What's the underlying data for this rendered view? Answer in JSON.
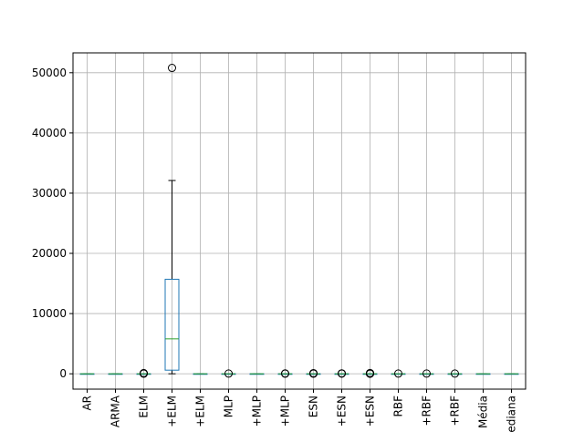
{
  "chart_data": {
    "type": "box",
    "title": "",
    "xlabel": "",
    "ylabel": "",
    "ylim": [
      -2550,
      53300
    ],
    "yticks": [
      0,
      10000,
      20000,
      30000,
      40000,
      50000
    ],
    "ytick_labels": [
      "0",
      "10000",
      "20000",
      "30000",
      "40000",
      "50000"
    ],
    "grid": true,
    "colors": {
      "box": "#1f77b4",
      "median": "#2ca02c",
      "grid": "#b0b0b0",
      "axes": "#000000"
    },
    "categories": [
      "AR",
      "ARMA",
      "ELM",
      "+ELM",
      "+ELM",
      "MLP",
      "+MLP",
      "+MLP",
      "ESN",
      "+ESN",
      "+ESN",
      "RBF",
      "+RBF",
      "+RBF",
      "Média",
      "ediana"
    ],
    "boxes": [
      {
        "label": "AR",
        "whislo": 0,
        "q1": 0,
        "med": 0,
        "q3": 0,
        "whishi": 0,
        "fliers": []
      },
      {
        "label": "ARMA",
        "whislo": 0,
        "q1": 0,
        "med": 0,
        "q3": 0,
        "whishi": 0,
        "fliers": []
      },
      {
        "label": "ELM",
        "whislo": 0,
        "q1": 0,
        "med": 0,
        "q3": 0,
        "whishi": 0,
        "fliers": [
          20,
          60,
          110
        ]
      },
      {
        "label": "+ELM",
        "whislo": 0,
        "q1": 600,
        "med": 5800,
        "q3": 15700,
        "whishi": 32100,
        "fliers": [
          50800
        ]
      },
      {
        "label": "+ELM",
        "whislo": 0,
        "q1": 0,
        "med": 0,
        "q3": 0,
        "whishi": 0,
        "fliers": []
      },
      {
        "label": "MLP",
        "whislo": 0,
        "q1": 0,
        "med": 0,
        "q3": 0,
        "whishi": 0,
        "fliers": [
          40
        ]
      },
      {
        "label": "+MLP",
        "whislo": 0,
        "q1": 0,
        "med": 0,
        "q3": 0,
        "whishi": 0,
        "fliers": []
      },
      {
        "label": "+MLP",
        "whislo": 0,
        "q1": 0,
        "med": 0,
        "q3": 0,
        "whishi": 0,
        "fliers": [
          20,
          60
        ]
      },
      {
        "label": "ESN",
        "whislo": 0,
        "q1": 0,
        "med": 0,
        "q3": 0,
        "whishi": 0,
        "fliers": [
          20,
          60,
          100
        ]
      },
      {
        "label": "+ESN",
        "whislo": 0,
        "q1": 0,
        "med": 0,
        "q3": 0,
        "whishi": 0,
        "fliers": [
          30,
          70
        ]
      },
      {
        "label": "+ESN",
        "whislo": 0,
        "q1": 0,
        "med": 0,
        "q3": 0,
        "whishi": 0,
        "fliers": [
          10,
          40,
          80,
          120
        ]
      },
      {
        "label": "RBF",
        "whislo": 0,
        "q1": 0,
        "med": 0,
        "q3": 0,
        "whishi": 0,
        "fliers": [
          40
        ]
      },
      {
        "label": "+RBF",
        "whislo": 0,
        "q1": 0,
        "med": 0,
        "q3": 0,
        "whishi": 0,
        "fliers": [
          40
        ]
      },
      {
        "label": "+RBF",
        "whislo": 0,
        "q1": 0,
        "med": 0,
        "q3": 0,
        "whishi": 0,
        "fliers": [
          40
        ]
      },
      {
        "label": "Média",
        "whislo": 0,
        "q1": 0,
        "med": 0,
        "q3": 0,
        "whishi": 0,
        "fliers": []
      },
      {
        "label": "ediana",
        "whislo": 0,
        "q1": 0,
        "med": 0,
        "q3": 0,
        "whishi": 0,
        "fliers": []
      }
    ]
  }
}
